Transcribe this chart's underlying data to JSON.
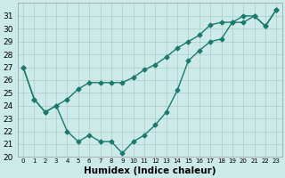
{
  "xlabel": "Humidex (Indice chaleur)",
  "x": [
    0,
    1,
    2,
    3,
    4,
    5,
    6,
    7,
    8,
    9,
    10,
    11,
    12,
    13,
    14,
    15,
    16,
    17,
    18,
    19,
    20,
    21,
    22,
    23
  ],
  "line_lower": [
    27,
    24.5,
    23.5,
    24,
    22,
    21.2,
    21.7,
    21.2,
    21.2,
    20.3,
    21.2,
    21.7,
    22.5,
    23.5,
    25.2,
    27.5,
    28.3,
    29.0,
    29.2,
    30.5,
    31.0,
    31.0,
    30.2,
    31.5
  ],
  "line_upper": [
    27,
    24.5,
    23.5,
    24,
    24.5,
    25.3,
    25.8,
    25.8,
    25.8,
    25.8,
    26.2,
    26.8,
    27.2,
    27.8,
    28.5,
    29.0,
    29.5,
    30.3,
    30.5,
    30.5,
    30.5,
    31.0,
    30.2,
    31.5
  ],
  "line_color": "#1a7a6e",
  "bg_color": "#cceae8",
  "grid_color": "#aacccc",
  "ylim_min": 20,
  "ylim_max": 32,
  "yticks": [
    20,
    21,
    22,
    23,
    24,
    25,
    26,
    27,
    28,
    29,
    30,
    31
  ],
  "marker": "D",
  "markersize": 2.5,
  "linewidth": 1.0
}
